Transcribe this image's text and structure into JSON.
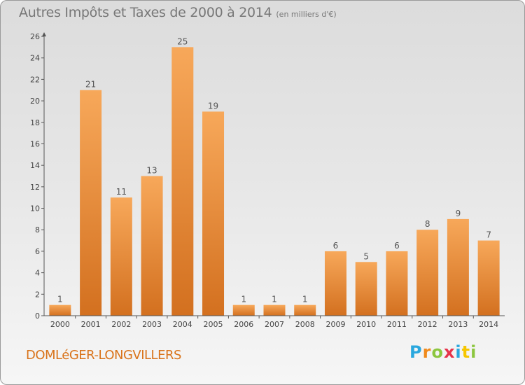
{
  "title": "Autres Impôts et Taxes de 2000 à 2014",
  "unit": "(en milliers d'€)",
  "commune": "DOMLéGER-LONGVILLERS",
  "logo": {
    "letters": [
      "P",
      "r",
      "o",
      "x",
      "i",
      "t",
      "i"
    ],
    "colors": [
      "#2aa7de",
      "#f08a1c",
      "#8cc63f",
      "#e6334a",
      "#2aa7de",
      "#f6c600",
      "#8cc63f"
    ]
  },
  "colors": {
    "bar_top": "#f7a85a",
    "bar_bottom": "#d3701f",
    "axis": "#555555"
  },
  "chart_data": {
    "type": "bar",
    "categories": [
      "2000",
      "2001",
      "2002",
      "2003",
      "2004",
      "2005",
      "2006",
      "2007",
      "2008",
      "2009",
      "2010",
      "2011",
      "2012",
      "2013",
      "2014"
    ],
    "values": [
      1,
      21,
      11,
      13,
      25,
      19,
      1,
      1,
      1,
      6,
      5,
      6,
      8,
      9,
      7
    ],
    "yticks": [
      0,
      2,
      4,
      6,
      8,
      10,
      12,
      14,
      16,
      18,
      20,
      22,
      24,
      26
    ],
    "ylim": [
      0,
      26
    ],
    "grid": false,
    "title": "Autres Impôts et Taxes de 2000 à 2014",
    "ylabel": "(en milliers d'€)"
  }
}
